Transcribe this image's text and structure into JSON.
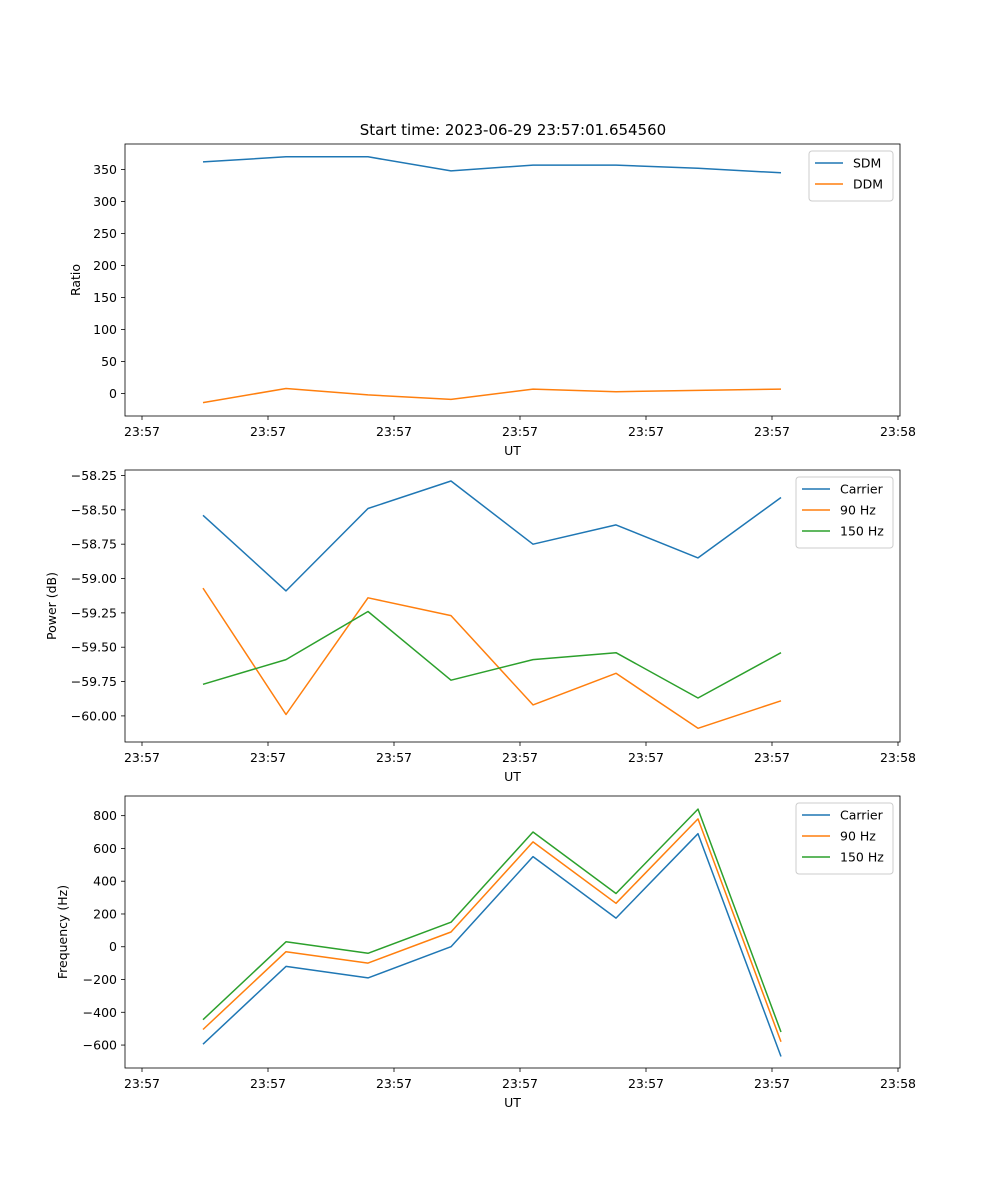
{
  "figure": {
    "title": "Start time: 2023-06-29 23:57:01.654560"
  },
  "chart_data": [
    {
      "type": "line",
      "xlabel": "UT",
      "ylabel": "Ratio",
      "x_tick_labels": [
        "23:57",
        "23:57",
        "23:57",
        "23:57",
        "23:57",
        "23:57",
        "23:58"
      ],
      "ylim": [
        -35,
        390
      ],
      "y_ticks": [
        0,
        50,
        100,
        150,
        200,
        250,
        300,
        350
      ],
      "grid": false,
      "legend_position": "top-right",
      "series": [
        {
          "name": "SDM",
          "color": "#1f77b4",
          "values": [
            362,
            370,
            370,
            348,
            357,
            357,
            352,
            345
          ]
        },
        {
          "name": "DDM",
          "color": "#ff7f0e",
          "values": [
            -14,
            8,
            -2,
            -9,
            7,
            3,
            5,
            7
          ]
        }
      ]
    },
    {
      "type": "line",
      "xlabel": "UT",
      "ylabel": "Power (dB)",
      "x_tick_labels": [
        "23:57",
        "23:57",
        "23:57",
        "23:57",
        "23:57",
        "23:57",
        "23:58"
      ],
      "ylim": [
        -60.19,
        -58.21
      ],
      "y_ticks": [
        -60.0,
        -59.75,
        -59.5,
        -59.25,
        -59.0,
        -58.75,
        -58.5,
        -58.25
      ],
      "y_tick_labels": [
        "−60.00",
        "−59.75",
        "−59.50",
        "−59.25",
        "−59.00",
        "−58.75",
        "−58.50",
        "−58.25"
      ],
      "grid": false,
      "legend_position": "top-right",
      "series": [
        {
          "name": "Carrier",
          "color": "#1f77b4",
          "values": [
            -58.54,
            -59.09,
            -58.49,
            -58.29,
            -58.75,
            -58.61,
            -58.85,
            -58.41
          ]
        },
        {
          "name": "90 Hz",
          "color": "#ff7f0e",
          "values": [
            -59.07,
            -59.99,
            -59.14,
            -59.27,
            -59.92,
            -59.69,
            -60.09,
            -59.89
          ]
        },
        {
          "name": "150 Hz",
          "color": "#2ca02c",
          "values": [
            -59.77,
            -59.59,
            -59.24,
            -59.74,
            -59.59,
            -59.54,
            -59.87,
            -59.54
          ]
        }
      ]
    },
    {
      "type": "line",
      "xlabel": "UT",
      "ylabel": "Frequency (Hz)",
      "x_tick_labels": [
        "23:57",
        "23:57",
        "23:57",
        "23:57",
        "23:57",
        "23:57",
        "23:58"
      ],
      "ylim": [
        -740,
        920
      ],
      "y_ticks": [
        -600,
        -400,
        -200,
        0,
        200,
        400,
        600,
        800
      ],
      "y_tick_labels": [
        "−600",
        "−400",
        "−200",
        "0",
        "200",
        "400",
        "600",
        "800"
      ],
      "grid": false,
      "legend_position": "top-right",
      "series": [
        {
          "name": "Carrier",
          "color": "#1f77b4",
          "values": [
            -595,
            -120,
            -190,
            0,
            550,
            175,
            690,
            -670
          ]
        },
        {
          "name": "90 Hz",
          "color": "#ff7f0e",
          "values": [
            -505,
            -30,
            -100,
            90,
            640,
            265,
            780,
            -580
          ]
        },
        {
          "name": "150 Hz",
          "color": "#2ca02c",
          "values": [
            -445,
            30,
            -40,
            150,
            700,
            325,
            840,
            -520
          ]
        }
      ]
    }
  ]
}
